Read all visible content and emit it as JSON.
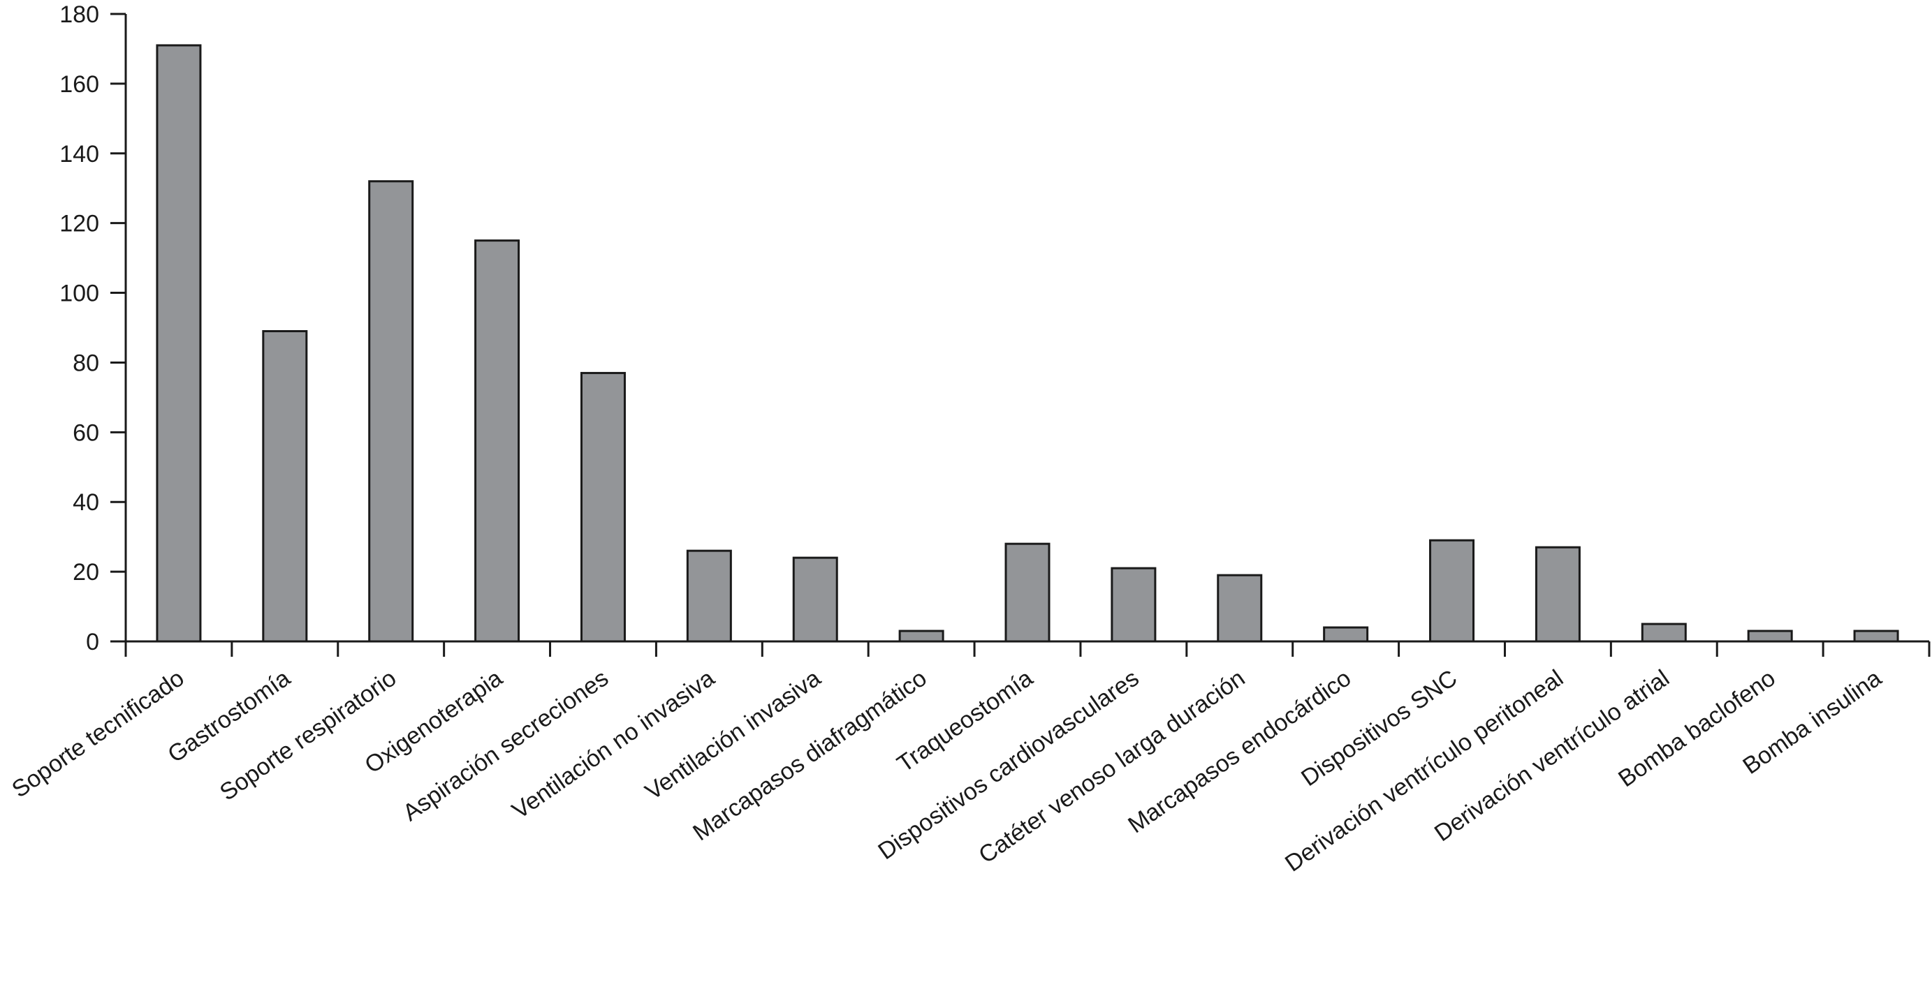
{
  "chart_data": {
    "type": "bar",
    "title": "",
    "xlabel": "",
    "ylabel": "",
    "ylim": [
      0,
      180
    ],
    "yticks": [
      0,
      20,
      40,
      60,
      80,
      100,
      120,
      140,
      160,
      180
    ],
    "grid": false,
    "legend": "none",
    "colors": {
      "bar_fill": "#939598",
      "bar_stroke": "#1a1a1a",
      "axis": "#1a1a1a"
    },
    "categories": [
      "Soporte tecnificado",
      "Gastrostomía",
      "Soporte respiratorio",
      "Oxigenoterapia",
      "Aspiración secreciones",
      "Ventilación no invasiva",
      "Ventilación invasiva",
      "Marcapasos diafragmático",
      "Traqueostomía",
      "Dispositivos cardiovasculares",
      "Catéter venoso larga duración",
      "Marcapasos endocárdico",
      "Dispositivos SNC",
      "Derivación ventrículo peritoneal",
      "Derivación ventrículo atrial",
      "Bomba baclofeno",
      "Bomba insulina"
    ],
    "values": [
      171,
      89,
      132,
      115,
      77,
      26,
      24,
      3,
      28,
      21,
      19,
      4,
      29,
      27,
      5,
      3,
      3
    ]
  }
}
